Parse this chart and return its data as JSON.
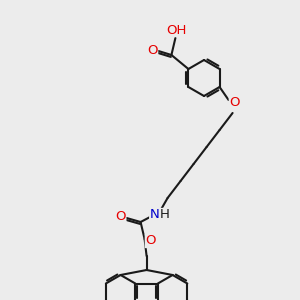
{
  "bg_color": "#ececec",
  "line_color": "#1a1a1a",
  "bond_width": 1.5,
  "atom_colors": {
    "O": "#e60000",
    "N": "#0000cc",
    "C": "#1a1a1a"
  },
  "font_size": 8.5,
  "ring_r": 18,
  "fluor_ring_r": 17
}
